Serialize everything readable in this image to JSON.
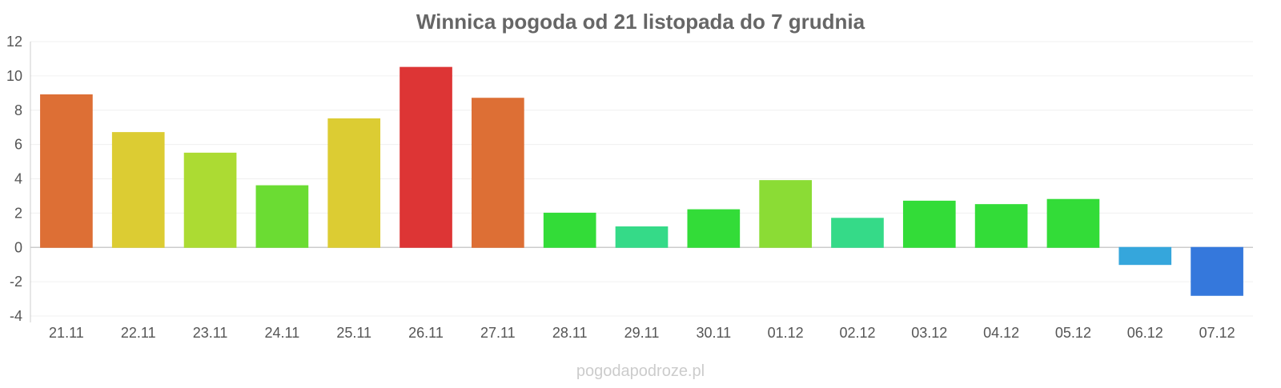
{
  "chart_data": {
    "type": "bar",
    "title": "Winnica pogoda od 21 listopada do 7 grudnia",
    "xlabel": "",
    "ylabel": "",
    "categories": [
      "21.11",
      "22.11",
      "23.11",
      "24.11",
      "25.11",
      "26.11",
      "27.11",
      "28.11",
      "29.11",
      "30.11",
      "01.12",
      "02.12",
      "03.12",
      "04.12",
      "05.12",
      "06.12",
      "07.12"
    ],
    "values": [
      8.9,
      6.7,
      5.5,
      3.6,
      7.5,
      10.5,
      8.7,
      2.0,
      1.2,
      2.2,
      3.9,
      1.7,
      2.7,
      2.5,
      2.8,
      -1.0,
      -2.8
    ],
    "colors": [
      "#dd6f35",
      "#dccc33",
      "#acdb33",
      "#6bdc33",
      "#dccc33",
      "#dd3535",
      "#dd6f35",
      "#33dc38",
      "#35da88",
      "#33dc38",
      "#8bdc35",
      "#35da88",
      "#33dc38",
      "#33dc38",
      "#33dc38",
      "#35a6dc",
      "#3578dc"
    ],
    "yticks": [
      "12",
      "10",
      "8",
      "6",
      "4",
      "2",
      "0",
      "-2",
      "-4"
    ],
    "ylim": [
      -4,
      12
    ],
    "grid": true,
    "legend": "none"
  },
  "watermark": "pogodapodroze.pl"
}
